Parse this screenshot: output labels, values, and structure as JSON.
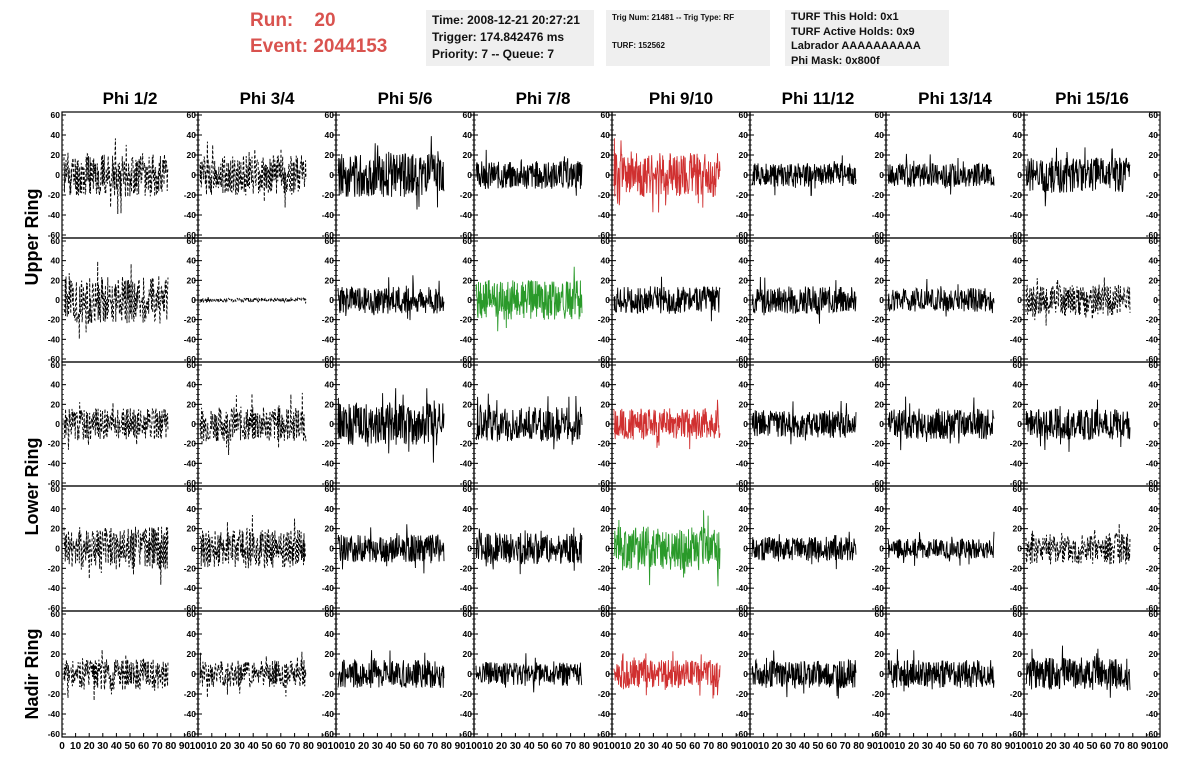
{
  "header": {
    "run_label": "Run:",
    "run_value": "20",
    "event_label": "Event:",
    "event_value": "2044153"
  },
  "info_time": {
    "line1": "Time: 2008-12-21 20:27:21",
    "line2": "Trigger: 174.842476 ms",
    "line3": "Priority: 7 -- Queue: 7"
  },
  "info_trig": {
    "line1": "Trig Num: 21481 -- Trig Type: RF",
    "line2": "TURF: 152562"
  },
  "info_turf": {
    "line1": "TURF This Hold: 0x1",
    "line2": "TURF Active Holds: 0x9",
    "line3": "Labrador AAAAAAAAAA",
    "line4": "Phi Mask: 0x800f"
  },
  "colors": {
    "normal": "#000000",
    "highlight_red": "#d03030",
    "highlight_green": "#2a9a2a"
  },
  "chart_data": {
    "type": "line",
    "columns": [
      "Phi 1/2",
      "Phi 3/4",
      "Phi 5/6",
      "Phi 7/8",
      "Phi 9/10",
      "Phi 11/12",
      "Phi 13/14",
      "Phi 15/16"
    ],
    "ring_labels": [
      {
        "label": "Upper Ring",
        "rows": [
          0,
          1
        ]
      },
      {
        "label": "Lower Ring",
        "rows": [
          2,
          3
        ]
      },
      {
        "label": "Nadir Ring",
        "rows": [
          4
        ]
      }
    ],
    "ylim": [
      -60,
      60
    ],
    "yticks": [
      "60",
      "40",
      "20",
      "0",
      "-20",
      "-40",
      "-60"
    ],
    "xlim": [
      0,
      100
    ],
    "xticks": [
      "0",
      "10",
      "20",
      "30",
      "40",
      "50",
      "60",
      "70",
      "80",
      "90",
      "100"
    ],
    "panels": [
      [
        {
          "style": "dashed",
          "color": "normal",
          "amp": 22,
          "seed": 11
        },
        {
          "style": "dashed",
          "color": "normal",
          "amp": 20,
          "seed": 12
        },
        {
          "style": "solid",
          "color": "normal",
          "amp": 22,
          "seed": 13
        },
        {
          "style": "solid",
          "color": "normal",
          "amp": 14,
          "seed": 14
        },
        {
          "style": "solid",
          "color": "highlight_red",
          "amp": 22,
          "seed": 15
        },
        {
          "style": "solid",
          "color": "normal",
          "amp": 12,
          "seed": 16
        },
        {
          "style": "solid",
          "color": "normal",
          "amp": 12,
          "seed": 17
        },
        {
          "style": "solid",
          "color": "normal",
          "amp": 18,
          "seed": 18
        }
      ],
      [
        {
          "style": "dashed",
          "color": "normal",
          "amp": 24,
          "seed": 21
        },
        {
          "style": "dashed",
          "color": "normal",
          "amp": 2,
          "seed": 22
        },
        {
          "style": "solid",
          "color": "normal",
          "amp": 14,
          "seed": 23
        },
        {
          "style": "solid",
          "color": "highlight_green",
          "amp": 20,
          "seed": 24
        },
        {
          "style": "solid",
          "color": "normal",
          "amp": 14,
          "seed": 25
        },
        {
          "style": "solid",
          "color": "normal",
          "amp": 14,
          "seed": 26
        },
        {
          "style": "solid",
          "color": "normal",
          "amp": 12,
          "seed": 27
        },
        {
          "style": "dashed",
          "color": "normal",
          "amp": 16,
          "seed": 28
        }
      ],
      [
        {
          "style": "dashed",
          "color": "normal",
          "amp": 16,
          "seed": 31
        },
        {
          "style": "dashed",
          "color": "normal",
          "amp": 18,
          "seed": 32
        },
        {
          "style": "solid",
          "color": "normal",
          "amp": 22,
          "seed": 33
        },
        {
          "style": "solid",
          "color": "normal",
          "amp": 18,
          "seed": 34
        },
        {
          "style": "solid",
          "color": "highlight_red",
          "amp": 16,
          "seed": 35
        },
        {
          "style": "solid",
          "color": "normal",
          "amp": 14,
          "seed": 36
        },
        {
          "style": "solid",
          "color": "normal",
          "amp": 16,
          "seed": 37
        },
        {
          "style": "solid",
          "color": "normal",
          "amp": 16,
          "seed": 38
        }
      ],
      [
        {
          "style": "dashed",
          "color": "normal",
          "amp": 22,
          "seed": 41
        },
        {
          "style": "dashed",
          "color": "normal",
          "amp": 20,
          "seed": 42
        },
        {
          "style": "solid",
          "color": "normal",
          "amp": 14,
          "seed": 43
        },
        {
          "style": "solid",
          "color": "normal",
          "amp": 16,
          "seed": 44
        },
        {
          "style": "solid",
          "color": "highlight_green",
          "amp": 22,
          "seed": 45
        },
        {
          "style": "solid",
          "color": "normal",
          "amp": 12,
          "seed": 46
        },
        {
          "style": "solid",
          "color": "normal",
          "amp": 10,
          "seed": 47
        },
        {
          "style": "dashed",
          "color": "normal",
          "amp": 16,
          "seed": 48
        }
      ],
      [
        {
          "style": "dashed",
          "color": "normal",
          "amp": 16,
          "seed": 51
        },
        {
          "style": "dashed",
          "color": "normal",
          "amp": 14,
          "seed": 52
        },
        {
          "style": "solid",
          "color": "normal",
          "amp": 14,
          "seed": 53
        },
        {
          "style": "solid",
          "color": "normal",
          "amp": 12,
          "seed": 54
        },
        {
          "style": "solid",
          "color": "highlight_red",
          "amp": 14,
          "seed": 55
        },
        {
          "style": "solid",
          "color": "normal",
          "amp": 14,
          "seed": 56
        },
        {
          "style": "solid",
          "color": "normal",
          "amp": 14,
          "seed": 57
        },
        {
          "style": "solid",
          "color": "normal",
          "amp": 16,
          "seed": 58
        }
      ]
    ]
  }
}
